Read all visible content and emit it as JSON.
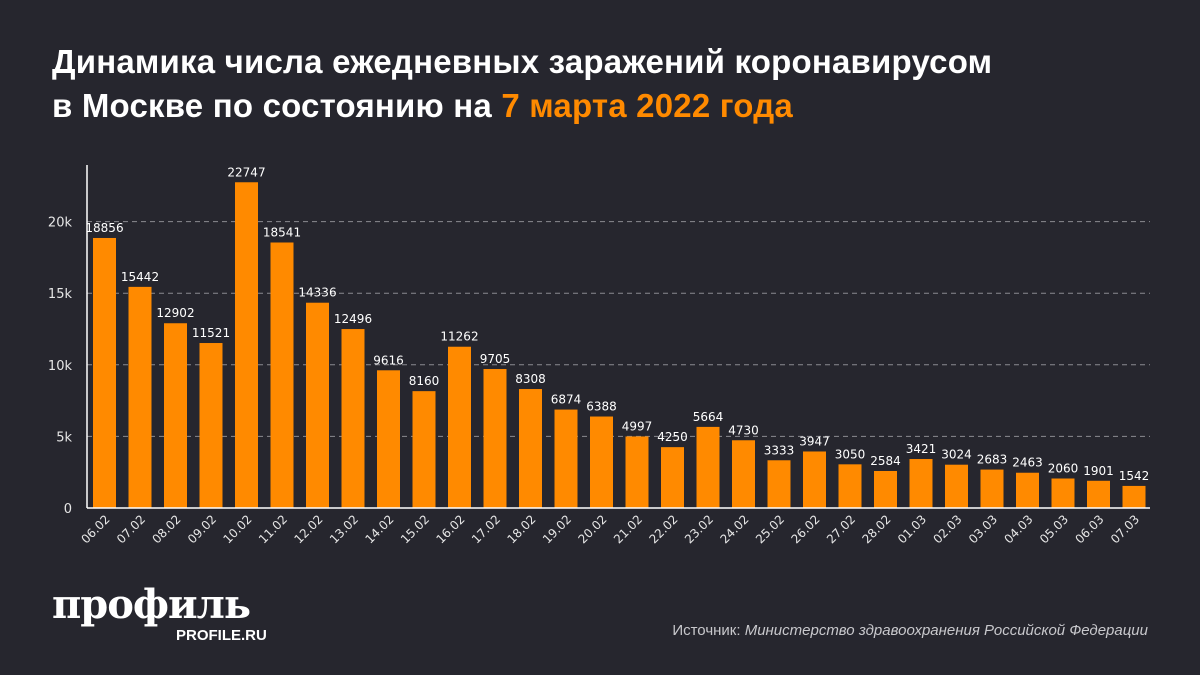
{
  "title": {
    "line1": "Динамика числа ежедневных заражений коронавирусом",
    "line2_prefix": "в Москве по состоянию на ",
    "line2_accent": "7 марта 2022 года"
  },
  "colors": {
    "background": "#26262e",
    "bar": "#ff8a00",
    "accent": "#ff8a00"
  },
  "chart_data": {
    "type": "bar",
    "categories": [
      "06.02",
      "07.02",
      "08.02",
      "09.02",
      "10.02",
      "11.02",
      "12.02",
      "13.02",
      "14.02",
      "15.02",
      "16.02",
      "17.02",
      "18.02",
      "19.02",
      "20.02",
      "21.02",
      "22.02",
      "23.02",
      "24.02",
      "25.02",
      "26.02",
      "27.02",
      "28.02",
      "01.03",
      "02.03",
      "03.03",
      "04.03",
      "05.03",
      "06.03",
      "07.03"
    ],
    "values": [
      18856,
      15442,
      12902,
      11521,
      22747,
      18541,
      14336,
      12496,
      9616,
      8160,
      11262,
      9705,
      8308,
      6874,
      6388,
      4997,
      4250,
      5664,
      4730,
      3333,
      3947,
      3050,
      2584,
      3421,
      3024,
      2683,
      2463,
      2060,
      1901,
      1542
    ],
    "yticks": [
      0,
      5000,
      10000,
      15000,
      20000
    ],
    "ytick_labels": [
      "0",
      "5k",
      "10k",
      "15k",
      "20k"
    ],
    "ylim": [
      0,
      24000
    ],
    "grid": "horizontal dashed",
    "data_labels": true
  },
  "logo": {
    "main": "профиль",
    "sub": "PROFILE.RU"
  },
  "source": {
    "label": "Источник: ",
    "value": "Министерство здравоохранения Российской Федерации"
  }
}
